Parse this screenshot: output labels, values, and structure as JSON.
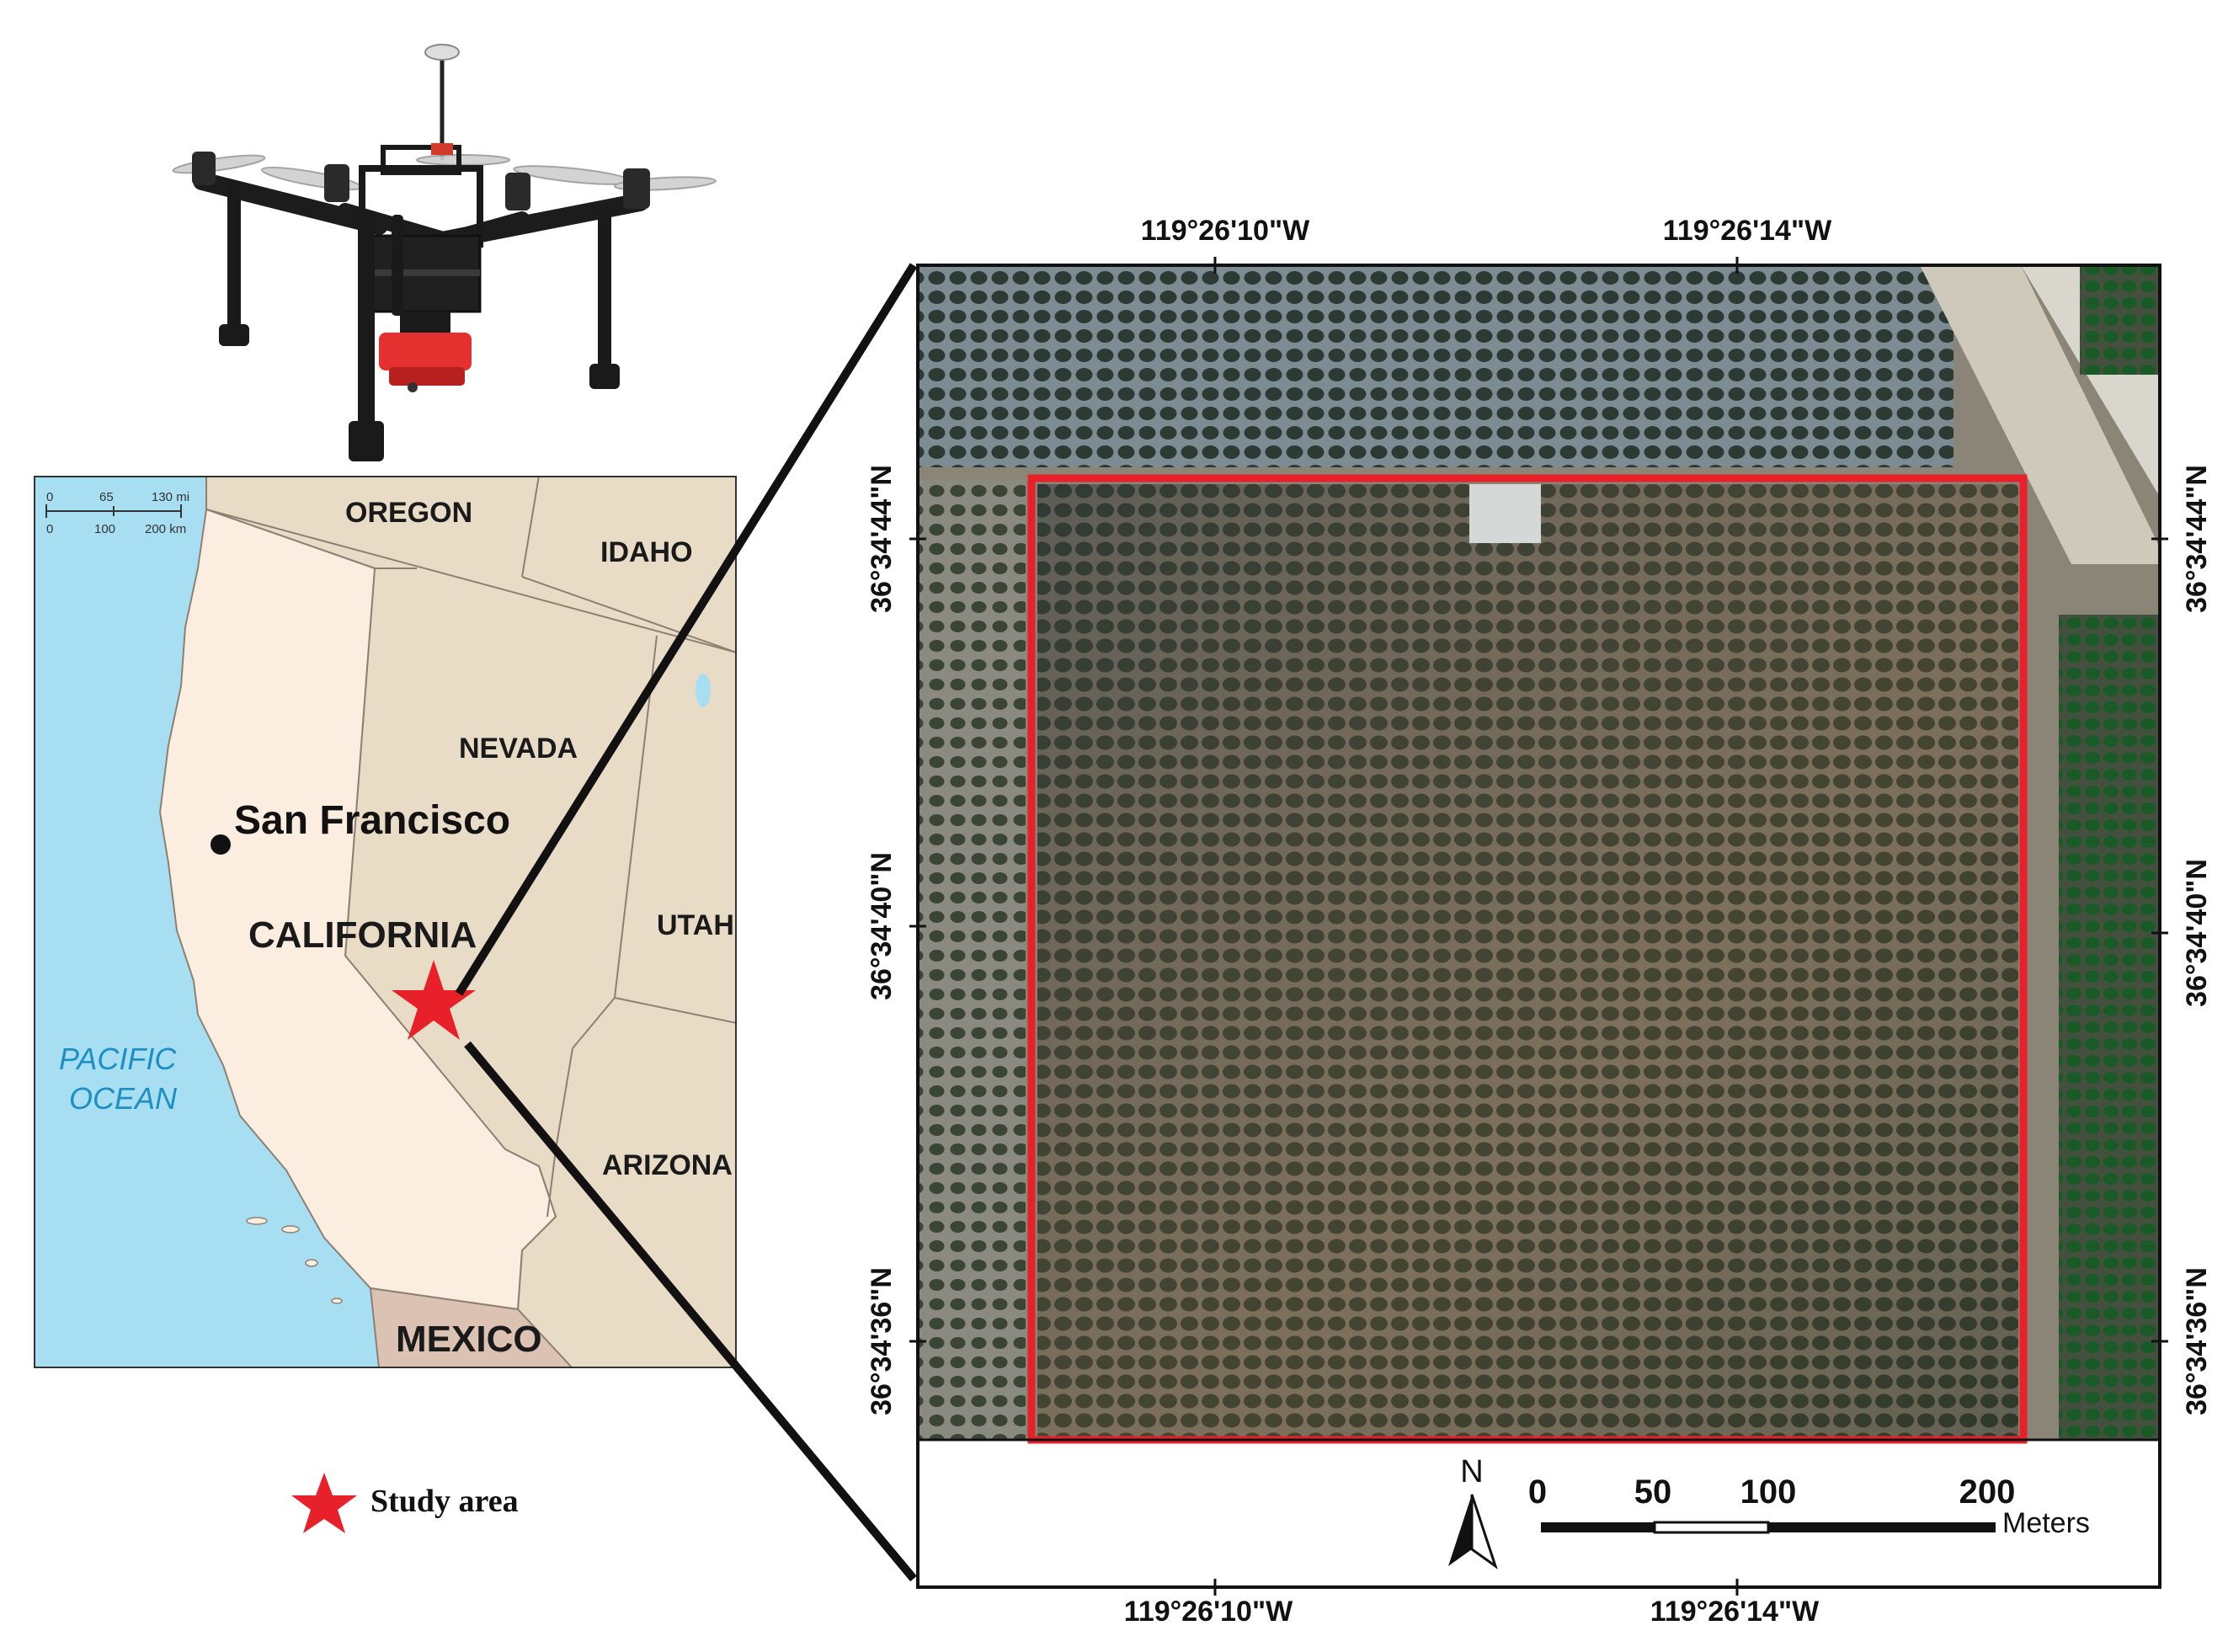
{
  "colors": {
    "ocean": "#a8def2",
    "california": "#fbeee0",
    "other_states": "#e9dcc6",
    "mexico": "#dcc2b3",
    "border": "#8c8072",
    "study_box": "#e8202a",
    "star": "#e8202a"
  },
  "map": {
    "states": {
      "oregon": "OREGON",
      "idaho": "IDAHO",
      "nevada": "NEVADA",
      "utah": "UTAH",
      "arizona": "ARIZONA",
      "california": "CALIFORNIA",
      "mexico": "MEXICO"
    },
    "city": "San Francisco",
    "ocean_line1": "PACIFIC",
    "ocean_line2": "OCEAN",
    "scale": {
      "mi_ticks": [
        "0",
        "65",
        "130 mi"
      ],
      "km_ticks": [
        "0",
        "100",
        "200 km"
      ]
    }
  },
  "ortho": {
    "top_lon_labels": [
      "119°26'10\"W",
      "119°26'14\"W"
    ],
    "bottom_lon_labels": [
      "119°26'10\"W",
      "119°26'14\"W"
    ],
    "left_lat_labels": [
      "36°34'44\"N",
      "36°34'40\"N",
      "36°34'36\"N"
    ],
    "right_lat_labels": [
      "36°34'44\"N",
      "36°34'40\"N",
      "36°34'36\"N"
    ],
    "north_label": "N",
    "scale_ticks": [
      "0",
      "50",
      "100",
      "200"
    ],
    "scale_unit": "Meters"
  },
  "legend": {
    "label": "Study area",
    "icon": "red-star-icon"
  }
}
